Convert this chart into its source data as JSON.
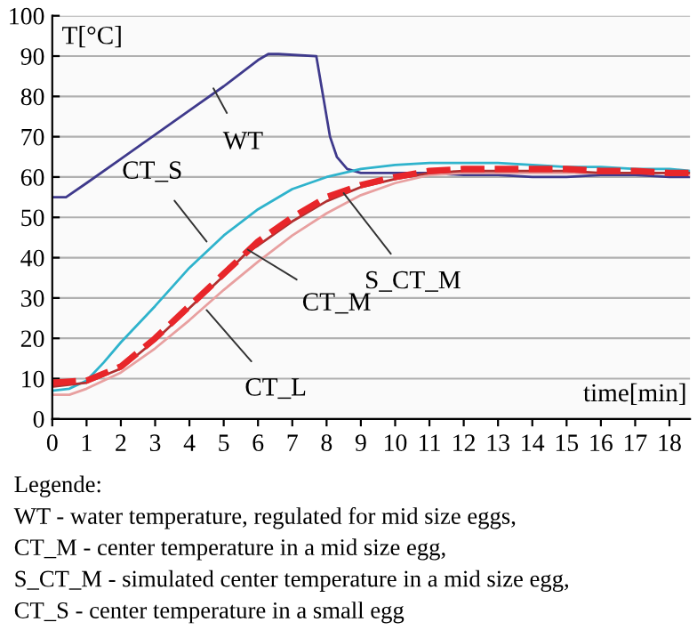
{
  "chart_data": {
    "type": "line",
    "ylabel": "T[°C]",
    "xlabel": "time[min]",
    "xlim": [
      0,
      18.6
    ],
    "ylim": [
      0,
      100
    ],
    "xticks": [
      0,
      1,
      2,
      3,
      4,
      5,
      6,
      7,
      8,
      9,
      10,
      11,
      12,
      13,
      14,
      15,
      16,
      17,
      18
    ],
    "yticks": [
      0,
      10,
      20,
      30,
      40,
      50,
      60,
      70,
      80,
      90,
      100
    ],
    "grid": "y",
    "legend": false,
    "marker": "none",
    "series": [
      {
        "color": "#3f3a8c",
        "line_style": "solid",
        "x": [
          0,
          0.4,
          1,
          2,
          3,
          4,
          5,
          6,
          6.3,
          6.6,
          7.7,
          7.9,
          8.1,
          8.3,
          8.6,
          9,
          10,
          11,
          12,
          13,
          14,
          15,
          16,
          17,
          18,
          18.6
        ],
        "values": [
          55,
          55,
          58.5,
          64.5,
          70.5,
          76.5,
          82.5,
          89,
          90.5,
          90.5,
          90,
          80,
          70,
          65,
          62,
          61,
          61,
          61,
          60.5,
          60.5,
          60,
          60,
          60.5,
          60.5,
          60,
          60
        ]
      },
      {
        "color": "#2fb3cc",
        "line_style": "solid",
        "x": [
          0,
          0.5,
          1,
          1.5,
          2,
          3,
          4,
          5,
          6,
          7,
          8,
          9,
          10,
          11,
          12,
          13,
          14,
          15,
          16,
          17,
          18,
          18.6
        ],
        "values": [
          7,
          7.5,
          9.5,
          14,
          19,
          28,
          37.5,
          45.5,
          52,
          57,
          60,
          62,
          63,
          63.5,
          63.5,
          63.5,
          63,
          62.5,
          62.5,
          62,
          62,
          61.5
        ]
      },
      {
        "color": "#e8a0a0",
        "line_style": "solid",
        "x": [
          0,
          0.5,
          1,
          2,
          3,
          4,
          5,
          6,
          7,
          8,
          9,
          10,
          11,
          12,
          13,
          14,
          15,
          16,
          17,
          18,
          18.6
        ],
        "values": [
          6,
          6,
          7.5,
          11.5,
          17.5,
          24.5,
          32,
          39,
          45.5,
          51,
          55.5,
          58.5,
          60.5,
          61,
          61,
          61,
          61,
          61,
          61,
          61,
          60.5
        ]
      },
      {
        "color": "#b03030",
        "line_style": "solid",
        "x": [
          0,
          1,
          2,
          3,
          4,
          5,
          5.7,
          6,
          7,
          8,
          9,
          10,
          11,
          12,
          13,
          14,
          15,
          16,
          17,
          18,
          18.6
        ],
        "values": [
          8,
          9,
          12.5,
          19.5,
          27.5,
          35.5,
          41.5,
          43,
          49,
          54,
          57.5,
          59.5,
          61,
          61.5,
          61.5,
          61.5,
          61.5,
          61,
          61,
          61,
          61
        ]
      },
      {
        "color": "#e8262a",
        "line_style": "dashed",
        "x": [
          0,
          1,
          2,
          3,
          4,
          5,
          5.5,
          6,
          7,
          8,
          9,
          10,
          11,
          12,
          13,
          14,
          15,
          16,
          17,
          18,
          18.6
        ],
        "values": [
          9,
          9.5,
          13,
          20,
          28,
          36,
          40,
          44,
          50,
          55,
          58,
          60,
          61.5,
          62,
          62,
          62,
          62,
          61.5,
          61.5,
          61,
          61
        ]
      }
    ],
    "annotations": [
      {
        "text": "WT",
        "x": 4.7,
        "y": 82
      },
      {
        "text": "CT_S",
        "x": 4.5,
        "y": 44
      },
      {
        "text": "CT_M",
        "x": 5.7,
        "y": 42
      },
      {
        "text": "CT_L",
        "x": 4.5,
        "y": 27
      },
      {
        "text": "S_CT_M",
        "x": 8.5,
        "y": 56
      },
      "Legende:",
      "WT - water temperature, regulated for mid size eggs,",
      "CT_M - center temperature in a mid size egg,",
      "S_CT_M - simulated center temperature in a mid size egg,",
      "CT_S - center temperature in a small egg"
    ]
  }
}
